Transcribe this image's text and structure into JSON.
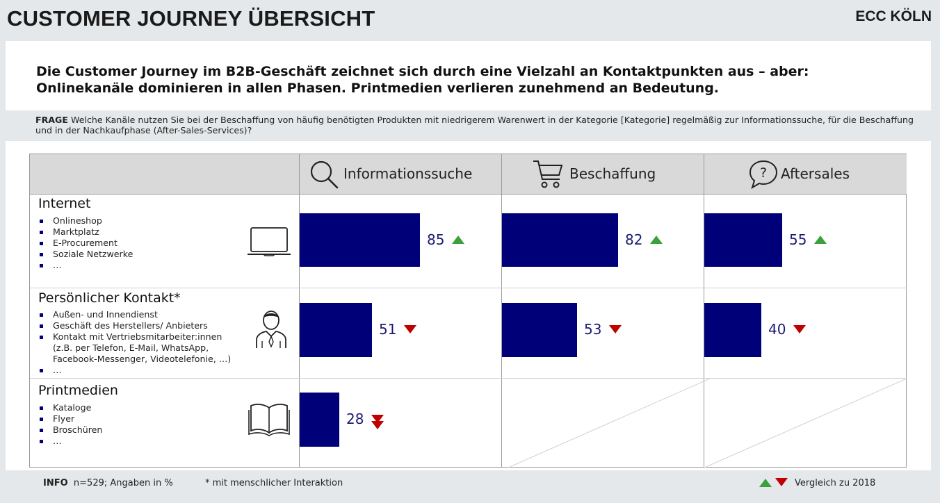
{
  "header": {
    "title": "CUSTOMER JOURNEY ÜBERSICHT",
    "brand": "ECC KÖLN"
  },
  "headline": {
    "line1": "Die Customer Journey im B2B-Geschäft zeichnet sich durch eine Vielzahl an Kontaktpunkten aus – aber:",
    "line2": "Onlinekanäle dominieren in allen Phasen. Printmedien verlieren zunehmend an Bedeutung."
  },
  "question": {
    "label": "FRAGE",
    "text": "Welche Kanäle nutzen Sie bei der Beschaffung von häufig benötigten Produkten mit niedrigerem Warenwert in der Kategorie [Kategorie] regelmäßig zur Informationssuche, für die Beschaffung und in der Nachkaufphase (After-Sales-Services)?"
  },
  "chart_data": {
    "type": "bar",
    "orientation": "horizontal",
    "phases": [
      "Informationssuche",
      "Beschaffung",
      "Aftersales"
    ],
    "phase_icons": [
      "magnifier-icon",
      "shopping-cart-icon",
      "question-bubble-icon"
    ],
    "channels": [
      {
        "name": "Internet",
        "icon": "laptop-icon",
        "items": [
          "Onlineshop",
          "Marktplatz",
          "E-Procurement",
          "Soziale Netzwerke",
          "…"
        ],
        "values": [
          85,
          82,
          55
        ],
        "trends": [
          "up",
          "up",
          "up"
        ]
      },
      {
        "name": "Persönlicher Kontakt*",
        "icon": "person-icon",
        "items": [
          "Außen- und Innendienst",
          "Geschäft des Herstellers/ Anbieters",
          "Kontakt mit Vertriebsmitarbeiter:innen",
          "(z.B. per Telefon, E-Mail, WhatsApp,",
          "Facebook-Messenger, Videotelefonie, …)",
          "…"
        ],
        "values": [
          51,
          53,
          40
        ],
        "trends": [
          "down",
          "down",
          "down"
        ]
      },
      {
        "name": "Printmedien",
        "icon": "open-book-icon",
        "items": [
          "Kataloge",
          "Flyer",
          "Broschüren",
          "…"
        ],
        "values": [
          28,
          null,
          null
        ],
        "trends": [
          "down-strong",
          null,
          null
        ]
      }
    ],
    "unit": "%",
    "xlim": [
      0,
      100
    ],
    "colors": {
      "bar": "#000078",
      "up": "#3aa13c",
      "down": "#c00000"
    }
  },
  "footer": {
    "info_label": "INFO",
    "info_text": "n=529; Angaben in %",
    "footnote": "* mit menschlicher Interaktion",
    "legend_text": "Vergleich zu 2018"
  }
}
